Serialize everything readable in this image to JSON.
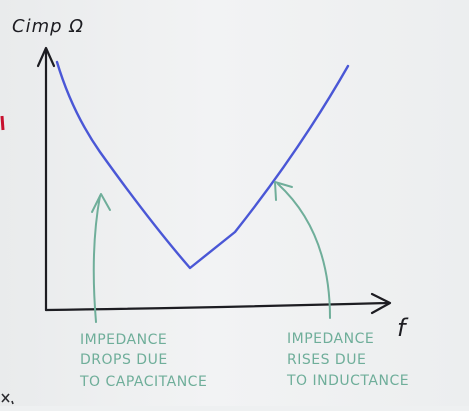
{
  "diagram": {
    "y_axis_label": "Cimp Ω",
    "x_axis_label": "f",
    "annotation_left": {
      "lines": [
        "IMPEDANCE",
        "DROPS DUE",
        "TO CAPACITANCE"
      ]
    },
    "annotation_right": {
      "lines": [
        "IMPEDANCE",
        "RISES DUE",
        "TO INDUCTANCE"
      ]
    },
    "curve_color": "#4a57d6",
    "axis_color": "#1d1d22",
    "annotation_color": "#6fae9a",
    "margin_mark_color": "#c8102e"
  }
}
